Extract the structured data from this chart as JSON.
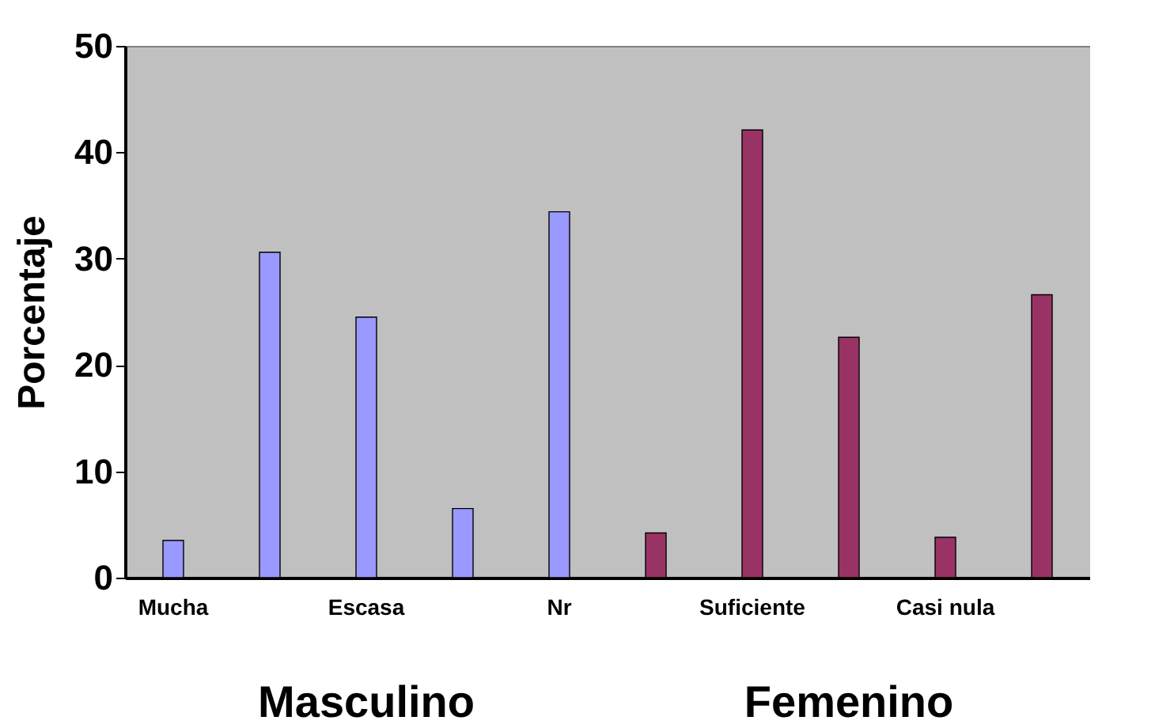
{
  "chart_data": {
    "type": "bar",
    "ylabel": "Porcentaje",
    "categories": [
      "Mucha",
      null,
      "Escasa",
      null,
      "Nr",
      null,
      "Suficiente",
      null,
      "Casi nula",
      null
    ],
    "series": [
      {
        "name": "Masculino",
        "color": "#9999ff",
        "values": [
          3.5,
          30.6,
          24.5,
          6.5,
          34.4,
          null,
          null,
          null,
          null,
          null
        ]
      },
      {
        "name": "Femenino",
        "color": "#993366",
        "values": [
          null,
          null,
          null,
          null,
          null,
          4.2,
          42.1,
          22.6,
          3.8,
          26.6
        ]
      }
    ],
    "ylim": [
      0,
      50
    ],
    "yticks": [
      0,
      10,
      20,
      30,
      40,
      50
    ],
    "grid": false,
    "legend": false
  }
}
